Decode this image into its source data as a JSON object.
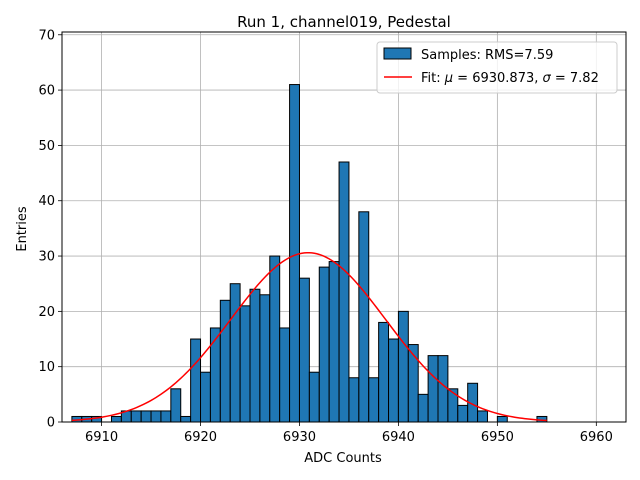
{
  "chart_data": {
    "type": "bar",
    "title": "Run 1, channel019, Pedestal",
    "xlabel": "ADC Counts",
    "ylabel": "Entries",
    "xlim": [
      6906,
      6963
    ],
    "ylim": [
      0,
      70.5
    ],
    "xticks": [
      6910,
      6920,
      6930,
      6940,
      6950,
      6960
    ],
    "yticks": [
      0,
      10,
      20,
      30,
      40,
      50,
      60,
      70
    ],
    "grid": true,
    "legend_position": "top-right",
    "bin_width": 1,
    "bins": {
      "left_edges": [
        6907,
        6908,
        6909,
        6910,
        6911,
        6912,
        6913,
        6914,
        6915,
        6916,
        6917,
        6918,
        6919,
        6920,
        6921,
        6922,
        6923,
        6924,
        6925,
        6926,
        6927,
        6928,
        6929,
        6930,
        6931,
        6932,
        6933,
        6934,
        6935,
        6936,
        6937,
        6938,
        6939,
        6940,
        6941,
        6942,
        6943,
        6944,
        6945,
        6946,
        6947,
        6948,
        6949,
        6950,
        6951,
        6952,
        6953,
        6954
      ],
      "counts": [
        1,
        1,
        1,
        0,
        1,
        2,
        2,
        2,
        2,
        2,
        6,
        1,
        15,
        9,
        17,
        22,
        25,
        21,
        24,
        23,
        30,
        17,
        61,
        26,
        9,
        28,
        29,
        47,
        8,
        38,
        8,
        18,
        15,
        20,
        14,
        5,
        12,
        12,
        6,
        3,
        7,
        2,
        0,
        1,
        0,
        0,
        0,
        1
      ]
    },
    "series": [
      {
        "name": "Samples: RMS=7.59",
        "type": "histogram",
        "color": "#1f77b4"
      },
      {
        "name": "Fit: μ = 6930.873, σ = 7.82",
        "type": "gaussian-line",
        "color": "#ff0000",
        "mu": 6930.873,
        "sigma": 7.82,
        "amplitude": 30.6,
        "x_range": [
          6907,
          6955
        ]
      }
    ]
  }
}
